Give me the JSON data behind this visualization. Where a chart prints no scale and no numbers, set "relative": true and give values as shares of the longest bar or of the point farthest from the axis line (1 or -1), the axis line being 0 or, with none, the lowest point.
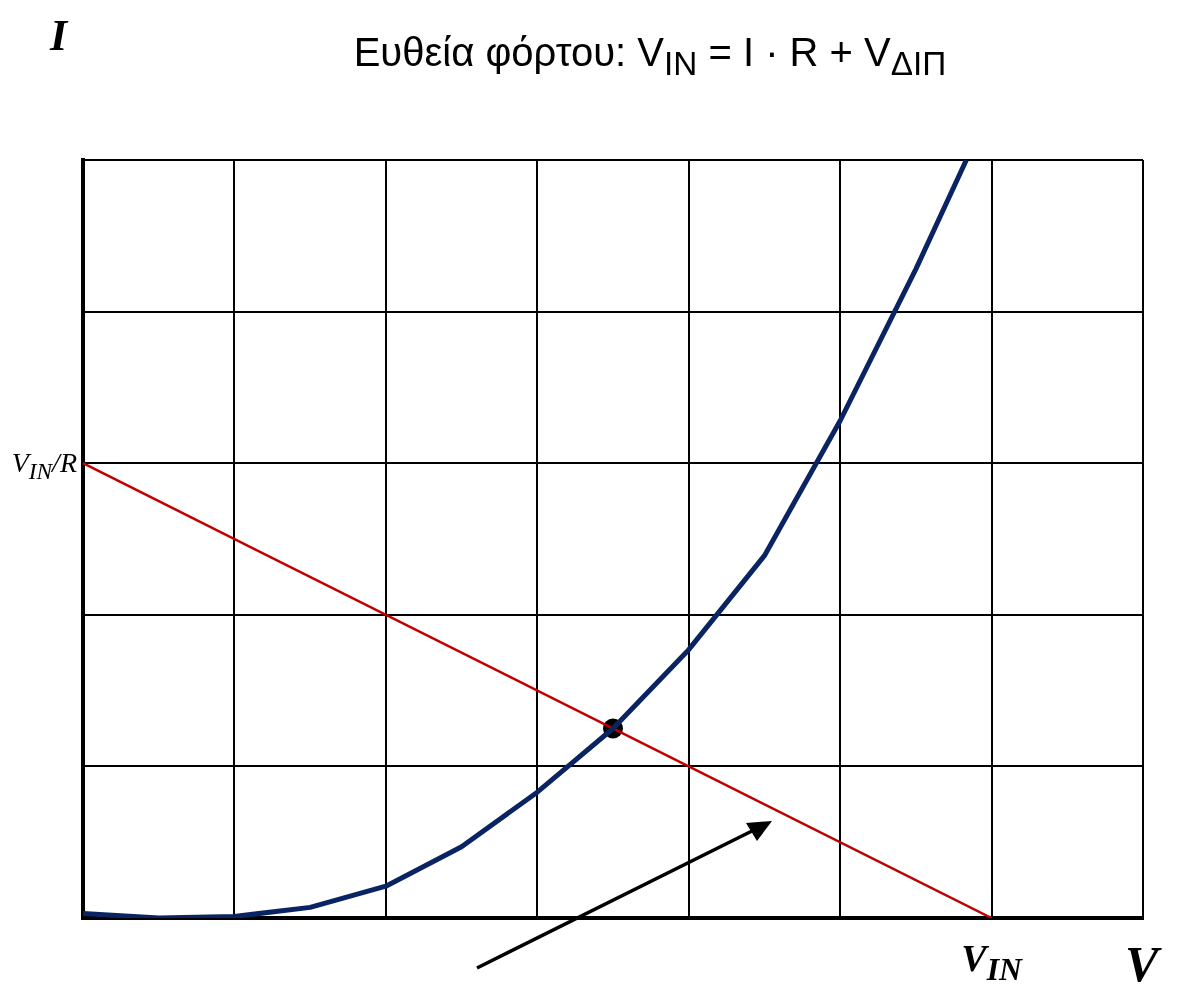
{
  "chart_data": {
    "type": "line",
    "title": "Ευθεία φόρτου: V$_{IN}$ = I · R + V$_{ΔΙΠ}$",
    "xlabel": "V",
    "ylabel": "I",
    "relative": true,
    "grid": true,
    "categories": [
      null,
      null,
      null,
      null,
      null,
      null,
      null,
      null,
      null,
      null,
      null,
      null,
      null,
      null,
      null,
      null,
      null,
      null,
      null,
      null,
      null,
      null,
      null,
      null,
      null,
      null,
      null,
      null,
      null,
      null,
      null,
      null,
      null,
      null,
      null,
      null,
      null,
      null,
      null,
      null,
      null,
      null,
      null
    ],
    "series": [
      {
        "color": "#0a2463",
        "values": [
          0.006,
          null,
          null,
          0,
          null,
          null,
          0.002,
          null,
          null,
          0.014,
          null,
          null,
          0.042,
          null,
          null,
          0.094,
          null,
          null,
          0.166,
          null,
          null,
          0.25,
          null,
          null,
          0.354,
          null,
          null,
          0.478,
          null,
          null,
          0.656,
          null,
          null,
          0.856,
          null,
          1.0,
          null,
          null,
          null,
          null,
          null,
          null,
          null
        ]
      },
      {
        "color": "#c00000",
        "values": [
          0.6,
          null,
          null,
          null,
          null,
          null,
          null,
          null,
          null,
          null,
          null,
          null,
          null,
          null,
          null,
          null,
          null,
          null,
          null,
          null,
          null,
          null,
          null,
          null,
          null,
          null,
          null,
          null,
          null,
          null,
          null,
          null,
          null,
          null,
          null,
          null,
          0,
          null,
          null,
          null,
          null,
          null,
          null
        ]
      },
      {
        "marker": "circle",
        "color": "#000000",
        "values": [
          null,
          null,
          null,
          null,
          null,
          null,
          null,
          null,
          null,
          null,
          null,
          null,
          null,
          null,
          null,
          null,
          null,
          null,
          null,
          null,
          null,
          0.25,
          null,
          null,
          null,
          null,
          null,
          null,
          null,
          null,
          null,
          null,
          null,
          null,
          null,
          null,
          null,
          null,
          null,
          null,
          null,
          null,
          null
        ]
      }
    ],
    "annotations": [
      "V$_{IN}$/R",
      "V$_{IN}$"
    ]
  }
}
